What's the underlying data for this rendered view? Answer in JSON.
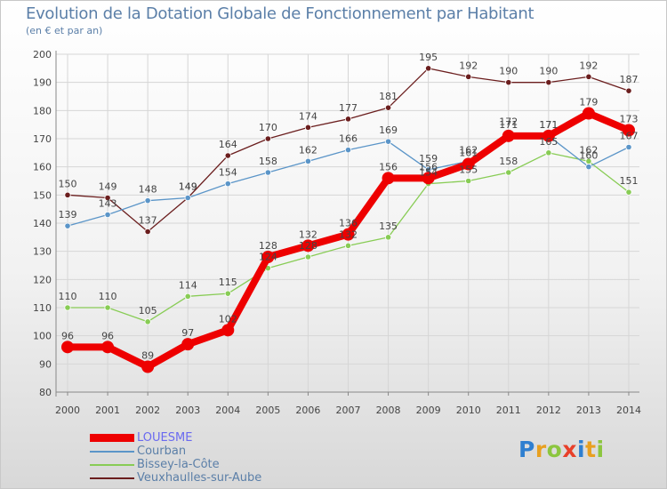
{
  "title": "Evolution de la Dotation Globale de Fonctionnement par Habitant",
  "subtitle": "(en € et par an)",
  "logo": "Proxiti",
  "chart_data": {
    "type": "line",
    "x": [
      "2000",
      "2001",
      "2002",
      "2003",
      "2004",
      "2005",
      "2006",
      "2007",
      "2008",
      "2009",
      "2010",
      "2011",
      "2012",
      "2013",
      "2014"
    ],
    "yticks": [
      80,
      90,
      100,
      110,
      120,
      130,
      140,
      150,
      160,
      170,
      180,
      190,
      200
    ],
    "ylim": [
      80,
      200
    ],
    "grid": true,
    "legend_position": "bottom-left",
    "series": [
      {
        "name": "Veuxhaulles-sur-Aube",
        "color": "#6b1e1e",
        "thick": false,
        "values": [
          150,
          149,
          137,
          149,
          164,
          170,
          174,
          177,
          181,
          195,
          192,
          190,
          190,
          192,
          187
        ]
      },
      {
        "name": "Bissey-la-Côte",
        "color": "#88cc55",
        "thick": false,
        "values": [
          110,
          110,
          105,
          114,
          115,
          124,
          128,
          132,
          135,
          154,
          155,
          158,
          165,
          162,
          151
        ]
      },
      {
        "name": "Courban",
        "color": "#5b95c8",
        "thick": false,
        "values": [
          139,
          143,
          148,
          149,
          154,
          158,
          162,
          166,
          169,
          159,
          162,
          172,
          171,
          160,
          167
        ]
      },
      {
        "name": "LOUESME",
        "color": "#ee0000",
        "thick": true,
        "values": [
          96,
          96,
          89,
          97,
          102,
          128,
          132,
          136,
          156,
          156,
          161,
          171,
          171,
          179,
          173
        ]
      }
    ],
    "legend": [
      {
        "label": "LOUESME",
        "color": "#ee0000",
        "thick": true
      },
      {
        "label": "Courban",
        "color": "#5b95c8",
        "thick": false
      },
      {
        "label": "Bissey-la-Côte",
        "color": "#88cc55",
        "thick": false
      },
      {
        "label": "Veuxhaulles-sur-Aube",
        "color": "#6b1e1e",
        "thick": false
      }
    ]
  }
}
